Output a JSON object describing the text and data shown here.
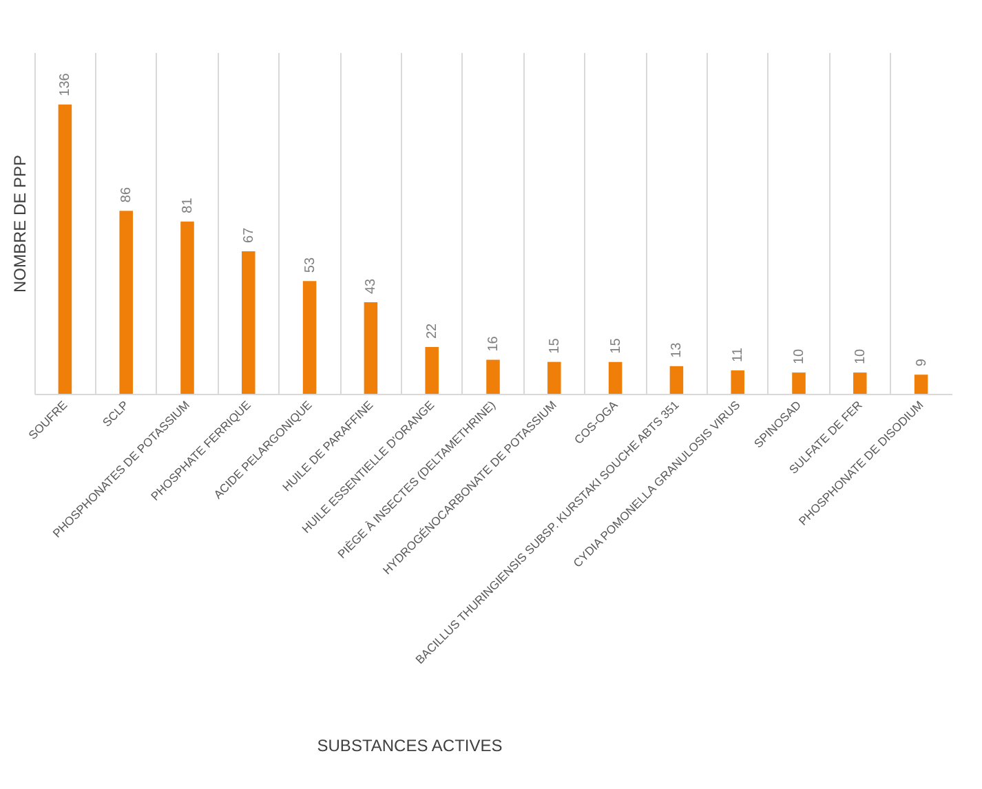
{
  "chart_data": {
    "type": "bar",
    "xlabel": "SUBSTANCES ACTIVES",
    "ylabel": "NOMBRE DE PPP",
    "categories": [
      "SOUFRE",
      "SCLP",
      "PHOSPHONATES DE POTASSIUM",
      "PHOSPHATE FERRIQUE",
      "ACIDE PELARGONIQUE",
      "HUILE DE PARAFFINE",
      "HUILE ESSENTIELLE D'ORANGE",
      "PIÈGE À INSECTES (DELTAMETHRINE)",
      "HYDROGÉNOCARBONATE DE POTASSIUM",
      "COS-OGA",
      "BACILLUS THURINGIENSIS SUBSP. KURSTAKI SOUCHE ABTS 351",
      "CYDIA POMONELLA GRANULOSIS VIRUS",
      "SPINOSAD",
      "SULFATE DE FER",
      "PHOSPHONATE DE DISODIUM"
    ],
    "values": [
      136,
      86,
      81,
      67,
      53,
      43,
      22,
      16,
      15,
      15,
      13,
      11,
      10,
      10,
      9
    ],
    "color": "#f07f09",
    "data_labels": true,
    "grid": "x"
  }
}
